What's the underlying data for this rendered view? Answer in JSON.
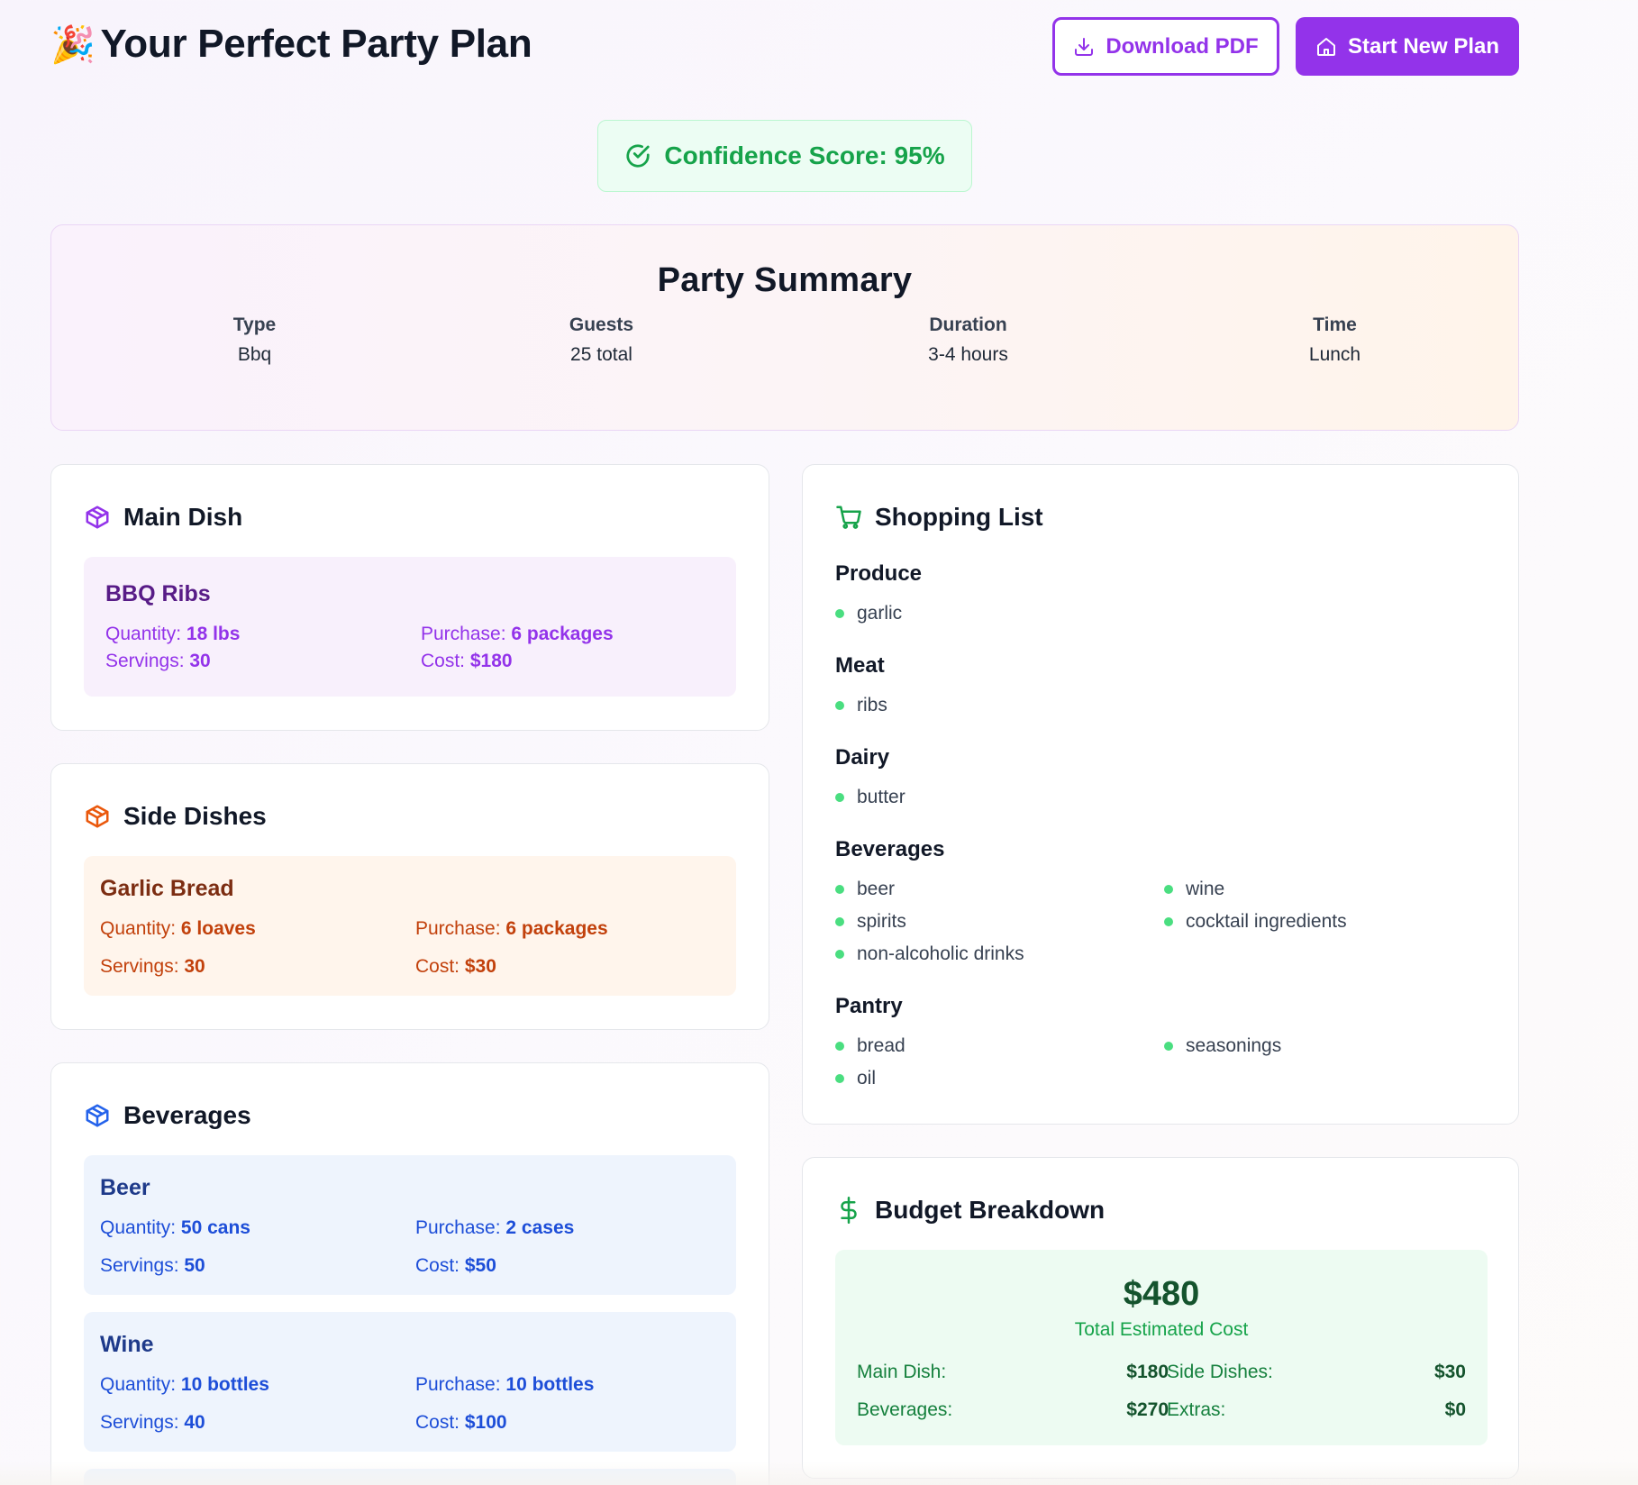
{
  "header": {
    "emoji": "🎉",
    "title": "Your Perfect Party Plan",
    "download_label": "Download PDF",
    "new_plan_label": "Start New Plan"
  },
  "confidence": {
    "label": "Confidence Score: 95%"
  },
  "summary": {
    "title": "Party Summary",
    "items": [
      {
        "label": "Type",
        "value": "Bbq"
      },
      {
        "label": "Guests",
        "value": "25 total"
      },
      {
        "label": "Duration",
        "value": "3-4 hours"
      },
      {
        "label": "Time",
        "value": "Lunch"
      }
    ]
  },
  "main_dish": {
    "title": "Main Dish",
    "items": [
      {
        "name": "BBQ Ribs",
        "quantity": "18 lbs",
        "purchase": "6 packages",
        "servings": "30",
        "cost": "$180"
      }
    ]
  },
  "side_dishes": {
    "title": "Side Dishes",
    "items": [
      {
        "name": "Garlic Bread",
        "quantity": "6 loaves",
        "purchase": "6 packages",
        "servings": "30",
        "cost": "$30"
      }
    ]
  },
  "beverages": {
    "title": "Beverages",
    "items": [
      {
        "name": "Beer",
        "quantity": "50 cans",
        "purchase": "2 cases",
        "servings": "50",
        "cost": "$50"
      },
      {
        "name": "Wine",
        "quantity": "10 bottles",
        "purchase": "10 bottles",
        "servings": "40",
        "cost": "$100"
      }
    ]
  },
  "labels": {
    "quantity": "Quantity: ",
    "purchase": "Purchase: ",
    "servings": "Servings: ",
    "cost": "Cost: "
  },
  "shopping": {
    "title": "Shopping List",
    "categories": [
      {
        "name": "Produce",
        "items": [
          "garlic"
        ]
      },
      {
        "name": "Meat",
        "items": [
          "ribs"
        ]
      },
      {
        "name": "Dairy",
        "items": [
          "butter"
        ]
      },
      {
        "name": "Beverages",
        "items": [
          "beer",
          "wine",
          "spirits",
          "cocktail ingredients",
          "non-alcoholic drinks"
        ]
      },
      {
        "name": "Pantry",
        "items": [
          "bread",
          "seasonings",
          "oil"
        ]
      }
    ]
  },
  "budget": {
    "title": "Budget Breakdown",
    "total": "$480",
    "total_label": "Total Estimated Cost",
    "lines": [
      {
        "label": "Main Dish:",
        "value": "$180"
      },
      {
        "label": "Side Dishes:",
        "value": "$30"
      },
      {
        "label": "Beverages:",
        "value": "$270"
      },
      {
        "label": "Extras:",
        "value": "$0"
      }
    ]
  },
  "colors": {
    "brand": "#9333ea",
    "success": "#16a34a",
    "orange": "#ea580c",
    "blue": "#2563eb"
  },
  "icons": {
    "download": "download-icon",
    "home": "home-icon",
    "check": "check-circle-icon",
    "package": "package-icon",
    "cart": "shopping-cart-icon",
    "dollar": "dollar-sign-icon"
  }
}
